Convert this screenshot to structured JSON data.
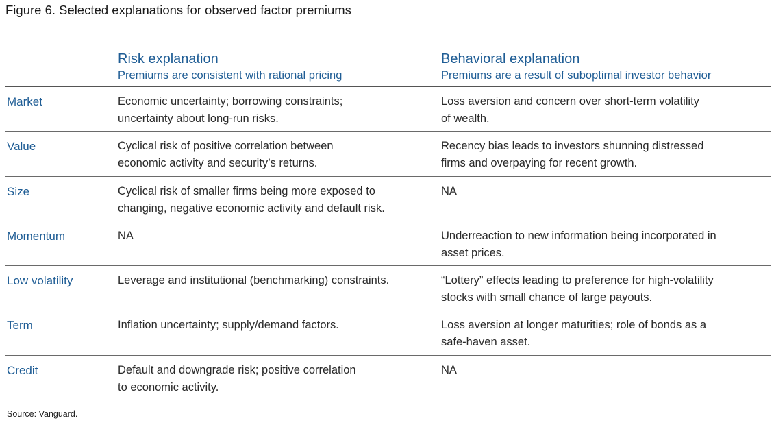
{
  "title": "Figure 6. Selected explanations for observed factor premiums",
  "columns": {
    "risk": {
      "heading": "Risk explanation",
      "subheading": "Premiums are consistent with rational pricing"
    },
    "behavioral": {
      "heading": "Behavioral explanation",
      "subheading": "Premiums are a result of suboptimal investor behavior"
    }
  },
  "rows": [
    {
      "factor": "Market",
      "risk": [
        "Economic uncertainty; borrowing constraints;",
        "uncertainty about long-run risks."
      ],
      "behavioral": [
        "Loss aversion and concern over short-term volatility",
        "of wealth."
      ]
    },
    {
      "factor": "Value",
      "risk": [
        "Cyclical risk of positive correlation between",
        "economic activity and security’s returns."
      ],
      "behavioral": [
        "Recency bias leads to investors shunning distressed",
        "firms and overpaying for recent growth."
      ]
    },
    {
      "factor": "Size",
      "risk": [
        "Cyclical risk of smaller firms being more exposed to",
        "changing, negative economic activity and default risk."
      ],
      "behavioral": [
        "NA",
        ""
      ]
    },
    {
      "factor": "Momentum",
      "risk": [
        "NA",
        ""
      ],
      "behavioral": [
        "Underreaction to new information being incorporated in",
        "asset prices."
      ]
    },
    {
      "factor": "Low volatility",
      "risk": [
        "Leverage and institutional (benchmarking) constraints.",
        ""
      ],
      "behavioral": [
        "“Lottery” effects leading to preference for high-volatility",
        "stocks with small chance of large payouts."
      ]
    },
    {
      "factor": "Term",
      "risk": [
        "Inflation uncertainty; supply/demand factors.",
        ""
      ],
      "behavioral": [
        "Loss aversion at longer maturities; role of bonds as a",
        "safe-haven asset."
      ]
    },
    {
      "factor": "Credit",
      "risk": [
        "Default and downgrade risk; positive correlation",
        "to economic activity."
      ],
      "behavioral": [
        "NA",
        ""
      ]
    }
  ],
  "source": {
    "label": "Source:",
    "text": "Vanguard."
  },
  "colors": {
    "accent_blue": "#1f5d95",
    "text": "#2a2a2a",
    "rule": "#6a6a6a"
  }
}
